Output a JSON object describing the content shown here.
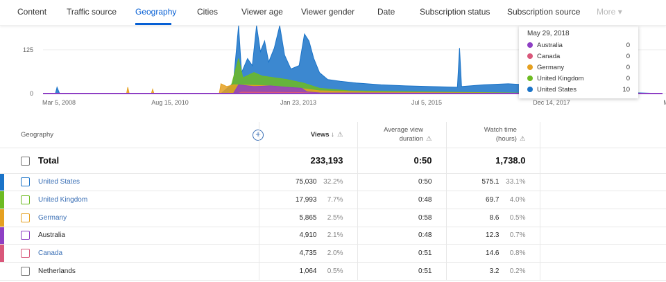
{
  "tabs": [
    "Content",
    "Traffic source",
    "Geography",
    "Cities",
    "Viewer age",
    "Viewer gender",
    "Date",
    "Subscription status",
    "Subscription source",
    "More"
  ],
  "active_tab": "Geography",
  "tooltip": {
    "date": "May 29, 2018",
    "rows": [
      {
        "name": "Australia",
        "value": "0",
        "color": "#8e3fc4"
      },
      {
        "name": "Canada",
        "value": "0",
        "color": "#d9577a"
      },
      {
        "name": "Germany",
        "value": "0",
        "color": "#e5a020"
      },
      {
        "name": "United Kingdom",
        "value": "0",
        "color": "#6dbb22"
      },
      {
        "name": "United States",
        "value": "10",
        "color": "#1a73c8"
      }
    ]
  },
  "chart_data": {
    "type": "area",
    "x_ticks": [
      "Mar 5, 2008",
      "Aug 15, 2010",
      "Jan 23, 2013",
      "Jul 5, 2015",
      "Dec 14, 2017",
      "M"
    ],
    "y_ticks": [
      0,
      125
    ],
    "ylim": [
      0,
      194
    ],
    "xlim": [
      "2007-10-20",
      "2020-05-20"
    ],
    "grid": true,
    "series": [
      {
        "name": "United States",
        "color": "#1a73c8",
        "points": [
          [
            "2007-10-20",
            0
          ],
          [
            "2008-01-20",
            0
          ],
          [
            "2008-02-01",
            18
          ],
          [
            "2008-02-20",
            0
          ],
          [
            "2011-06-01",
            0
          ],
          [
            "2011-09-01",
            30
          ],
          [
            "2011-10-10",
            194
          ],
          [
            "2011-11-01",
            60
          ],
          [
            "2011-12-15",
            100
          ],
          [
            "2012-01-20",
            80
          ],
          [
            "2012-02-20",
            194
          ],
          [
            "2012-03-20",
            120
          ],
          [
            "2012-04-20",
            150
          ],
          [
            "2012-05-20",
            90
          ],
          [
            "2012-07-01",
            130
          ],
          [
            "2012-08-10",
            194
          ],
          [
            "2012-09-15",
            110
          ],
          [
            "2012-11-01",
            70
          ],
          [
            "2013-01-01",
            80
          ],
          [
            "2013-02-10",
            170
          ],
          [
            "2013-03-15",
            150
          ],
          [
            "2013-04-20",
            100
          ],
          [
            "2013-06-01",
            60
          ],
          [
            "2013-08-01",
            40
          ],
          [
            "2013-11-01",
            35
          ],
          [
            "2014-03-01",
            30
          ],
          [
            "2014-09-01",
            25
          ],
          [
            "2015-03-01",
            22
          ],
          [
            "2015-09-01",
            20
          ],
          [
            "2016-03-20",
            18
          ],
          [
            "2016-04-05",
            130
          ],
          [
            "2016-04-20",
            20
          ],
          [
            "2016-10-01",
            25
          ],
          [
            "2017-04-01",
            28
          ],
          [
            "2017-10-01",
            24
          ],
          [
            "2018-03-01",
            18
          ],
          [
            "2018-05-29",
            10
          ],
          [
            "2018-10-01",
            8
          ],
          [
            "2019-03-01",
            5
          ],
          [
            "2019-09-01",
            3
          ],
          [
            "2020-05-20",
            0
          ]
        ]
      },
      {
        "name": "United Kingdom",
        "color": "#6dbb22",
        "points": [
          [
            "2007-10-20",
            0
          ],
          [
            "2011-08-01",
            0
          ],
          [
            "2011-10-10",
            100
          ],
          [
            "2011-11-10",
            45
          ],
          [
            "2012-02-01",
            60
          ],
          [
            "2012-04-01",
            50
          ],
          [
            "2012-07-01",
            45
          ],
          [
            "2012-10-01",
            40
          ],
          [
            "2013-02-01",
            30
          ],
          [
            "2013-06-01",
            15
          ],
          [
            "2014-01-01",
            8
          ],
          [
            "2015-06-01",
            5
          ],
          [
            "2018-05-29",
            0
          ],
          [
            "2020-05-20",
            0
          ]
        ]
      },
      {
        "name": "Germany",
        "color": "#e5a020",
        "points": [
          [
            "2007-10-20",
            0
          ],
          [
            "2009-07-01",
            0
          ],
          [
            "2009-07-10",
            18
          ],
          [
            "2009-07-20",
            0
          ],
          [
            "2010-01-01",
            0
          ],
          [
            "2010-01-10",
            12
          ],
          [
            "2010-01-20",
            0
          ],
          [
            "2011-05-20",
            0
          ],
          [
            "2011-06-01",
            28
          ],
          [
            "2011-07-15",
            20
          ],
          [
            "2011-09-01",
            25
          ],
          [
            "2012-06-01",
            22
          ],
          [
            "2013-01-01",
            15
          ],
          [
            "2013-06-01",
            8
          ],
          [
            "2014-06-01",
            4
          ],
          [
            "2018-05-29",
            0
          ],
          [
            "2020-05-20",
            0
          ]
        ]
      },
      {
        "name": "Australia",
        "color": "#8e3fc4",
        "points": [
          [
            "2007-10-20",
            0
          ],
          [
            "2011-09-01",
            0
          ],
          [
            "2011-10-10",
            25
          ],
          [
            "2012-02-01",
            20
          ],
          [
            "2012-06-01",
            22
          ],
          [
            "2012-10-01",
            18
          ],
          [
            "2013-01-20",
            15
          ],
          [
            "2013-03-01",
            5
          ],
          [
            "2013-06-01",
            2
          ],
          [
            "2020-05-20",
            0
          ]
        ]
      },
      {
        "name": "Canada",
        "color": "#d9577a",
        "points": [
          [
            "2007-10-20",
            0
          ],
          [
            "2011-10-01",
            0
          ],
          [
            "2011-11-01",
            4
          ],
          [
            "2013-01-01",
            3
          ],
          [
            "2013-06-01",
            1
          ],
          [
            "2020-05-20",
            0
          ]
        ]
      }
    ]
  },
  "table": {
    "headers": {
      "geography": "Geography",
      "views": "Views",
      "avd": "Average view duration",
      "watch": "Watch time (hours)"
    },
    "total": {
      "label": "Total",
      "views": "233,193",
      "avd": "0:50",
      "watch": "1,738.0"
    },
    "rows": [
      {
        "name": "United States",
        "views": "75,030",
        "views_pct": "32.2%",
        "avd": "0:50",
        "watch": "575.1",
        "watch_pct": "33.1%",
        "color": "#1a73c8",
        "link": true
      },
      {
        "name": "United Kingdom",
        "views": "17,993",
        "views_pct": "7.7%",
        "avd": "0:48",
        "watch": "69.7",
        "watch_pct": "4.0%",
        "color": "#6dbb22",
        "link": true
      },
      {
        "name": "Germany",
        "views": "5,865",
        "views_pct": "2.5%",
        "avd": "0:58",
        "watch": "8.6",
        "watch_pct": "0.5%",
        "color": "#e5a020",
        "link": true
      },
      {
        "name": "Australia",
        "views": "4,910",
        "views_pct": "2.1%",
        "avd": "0:48",
        "watch": "12.3",
        "watch_pct": "0.7%",
        "color": "#8e3fc4",
        "link": false
      },
      {
        "name": "Canada",
        "views": "4,735",
        "views_pct": "2.0%",
        "avd": "0:51",
        "watch": "14.6",
        "watch_pct": "0.8%",
        "color": "#d9577a",
        "link": true
      },
      {
        "name": "Netherlands",
        "views": "1,064",
        "views_pct": "0.5%",
        "avd": "0:51",
        "watch": "3.2",
        "watch_pct": "0.2%",
        "color": "",
        "link": false
      }
    ]
  }
}
